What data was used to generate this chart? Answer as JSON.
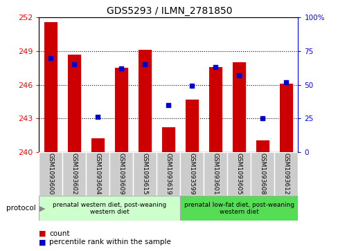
{
  "title": "GDS5293 / ILMN_2781850",
  "samples": [
    "GSM1093600",
    "GSM1093602",
    "GSM1093604",
    "GSM1093609",
    "GSM1093615",
    "GSM1093619",
    "GSM1093599",
    "GSM1093601",
    "GSM1093605",
    "GSM1093608",
    "GSM1093612"
  ],
  "counts": [
    251.6,
    248.7,
    241.2,
    247.5,
    249.1,
    242.2,
    244.7,
    247.6,
    248.0,
    241.0,
    246.1
  ],
  "percentiles": [
    70,
    65,
    26,
    62,
    65,
    35,
    49,
    63,
    57,
    25,
    52
  ],
  "ymin": 240,
  "ymax": 252,
  "yticks": [
    240,
    243,
    246,
    249,
    252
  ],
  "y2min": 0,
  "y2max": 100,
  "y2ticks": [
    0,
    25,
    50,
    75,
    100
  ],
  "bar_color": "#cc0000",
  "dot_color": "#0000cc",
  "group1_label": "prenatal western diet, post-weaning\nwestern diet",
  "group2_label": "prenatal low-fat diet, post-weaning\nwestern diet",
  "group1_count": 6,
  "group2_count": 5,
  "protocol_label": "protocol",
  "legend_count": "count",
  "legend_pct": "percentile rank within the sample",
  "bg_color": "#ffffff",
  "plot_bg": "#ffffff",
  "group1_bg": "#ccffcc",
  "group2_bg": "#55dd55",
  "sample_bg": "#cccccc"
}
